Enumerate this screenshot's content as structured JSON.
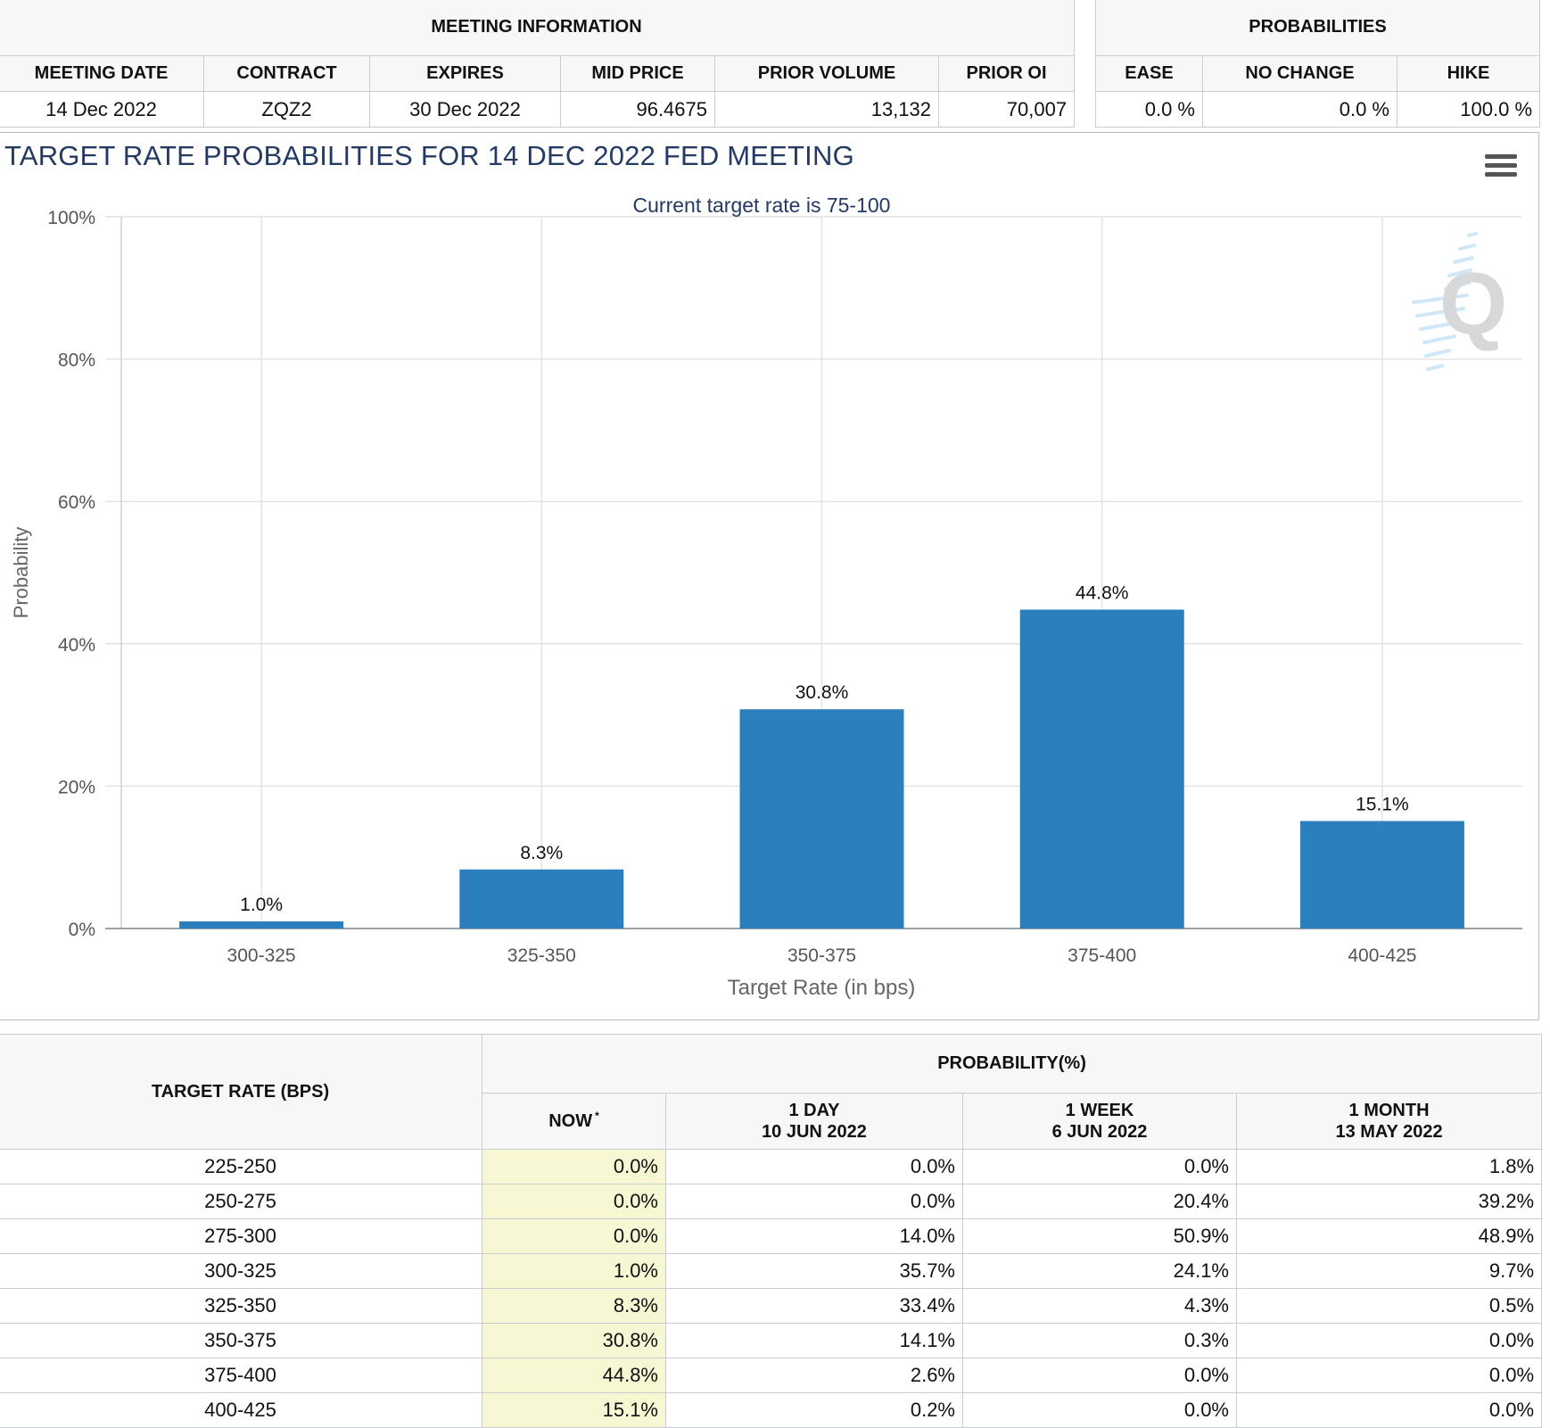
{
  "meeting_info": {
    "section_title": "MEETING INFORMATION",
    "headers": [
      "MEETING DATE",
      "CONTRACT",
      "EXPIRES",
      "MID PRICE",
      "PRIOR VOLUME",
      "PRIOR OI"
    ],
    "values": [
      "14 Dec 2022",
      "ZQZ2",
      "30 Dec 2022",
      "96.4675",
      "13,132",
      "70,007"
    ]
  },
  "probabilities": {
    "section_title": "PROBABILITIES",
    "headers": [
      "EASE",
      "NO CHANGE",
      "HIKE"
    ],
    "values": [
      "0.0 %",
      "0.0 %",
      "100.0 %"
    ]
  },
  "chart": {
    "title": "TARGET RATE PROBABILITIES FOR 14 DEC 2022 FED MEETING",
    "menu_icon": "hamburger-menu-icon",
    "watermark_icon": "cme-q-logo",
    "bar_color": "#2b7fbc"
  },
  "chart_data": {
    "type": "bar",
    "title": "TARGET RATE PROBABILITIES FOR 14 DEC 2022 FED MEETING",
    "subtitle": "Current target rate is 75-100",
    "xlabel": "Target Rate (in bps)",
    "ylabel": "Probability",
    "categories": [
      "300-325",
      "325-350",
      "350-375",
      "375-400",
      "400-425"
    ],
    "values": [
      1.0,
      8.3,
      30.8,
      44.8,
      15.1
    ],
    "data_labels": [
      "1.0%",
      "8.3%",
      "30.8%",
      "44.8%",
      "15.1%"
    ],
    "ylim": [
      0,
      100
    ],
    "yticks": [
      0,
      20,
      40,
      60,
      80,
      100
    ],
    "ytick_labels": [
      "0%",
      "20%",
      "40%",
      "60%",
      "80%",
      "100%"
    ],
    "grid": true,
    "legend": "none"
  },
  "rates_table": {
    "rate_header": "TARGET RATE (BPS)",
    "prob_header": "PROBABILITY(%)",
    "columns": [
      {
        "line1": "NOW",
        "line2": "",
        "sup": "*"
      },
      {
        "line1": "1 DAY",
        "line2": "10 JUN 2022",
        "sup": ""
      },
      {
        "line1": "1 WEEK",
        "line2": "6 JUN 2022",
        "sup": ""
      },
      {
        "line1": "1 MONTH",
        "line2": "13 MAY 2022",
        "sup": ""
      }
    ],
    "rows": [
      {
        "rate": "225-250",
        "now": "0.0%",
        "day": "0.0%",
        "week": "0.0%",
        "month": "1.8%"
      },
      {
        "rate": "250-275",
        "now": "0.0%",
        "day": "0.0%",
        "week": "20.4%",
        "month": "39.2%"
      },
      {
        "rate": "275-300",
        "now": "0.0%",
        "day": "14.0%",
        "week": "50.9%",
        "month": "48.9%"
      },
      {
        "rate": "300-325",
        "now": "1.0%",
        "day": "35.7%",
        "week": "24.1%",
        "month": "9.7%"
      },
      {
        "rate": "325-350",
        "now": "8.3%",
        "day": "33.4%",
        "week": "4.3%",
        "month": "0.5%"
      },
      {
        "rate": "350-375",
        "now": "30.8%",
        "day": "14.1%",
        "week": "0.3%",
        "month": "0.0%"
      },
      {
        "rate": "375-400",
        "now": "44.8%",
        "day": "2.6%",
        "week": "0.0%",
        "month": "0.0%"
      },
      {
        "rate": "400-425",
        "now": "15.1%",
        "day": "0.2%",
        "week": "0.0%",
        "month": "0.0%"
      }
    ]
  }
}
